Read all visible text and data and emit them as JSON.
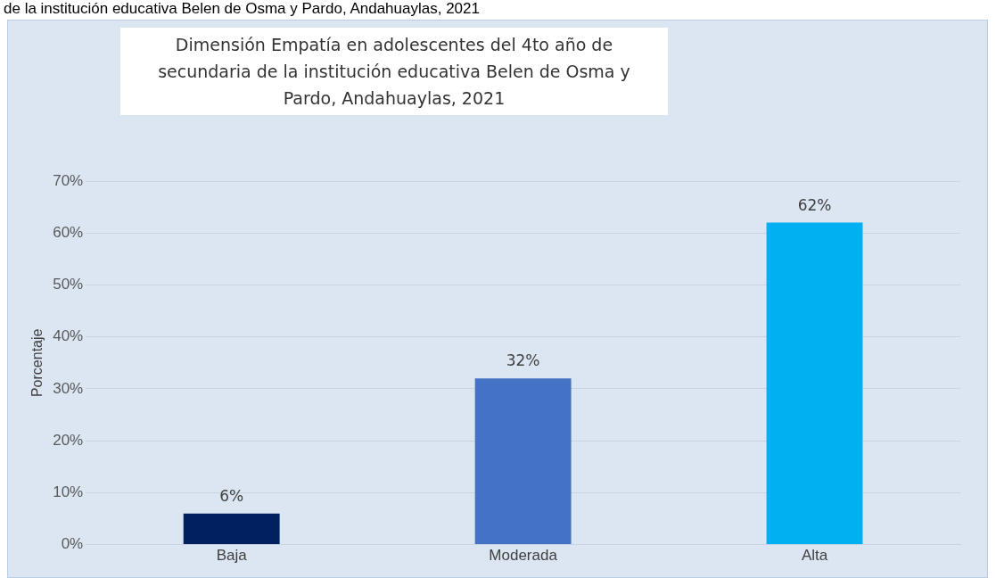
{
  "chart_data": {
    "type": "bar",
    "title": "Dimensión Empatía en adolescentes del 4to año de secundaria de la institución educativa Belen de Osma y Pardo, Andahuaylas, 2021",
    "annotations": [
      "de la institución educativa Belen de Osma y Pardo, Andahuaylas, 2021"
    ],
    "ylabel": "Porcentaje",
    "categories": [
      "Baja",
      "Moderada",
      "Alta"
    ],
    "values": [
      6,
      32,
      62
    ],
    "colors": [
      "#002060",
      "#4472c4",
      "#00b0f0"
    ],
    "value_labels": [
      "6%",
      "32%",
      "62%"
    ],
    "ylim": [
      0,
      70
    ],
    "yticks": [
      {
        "value": 0,
        "label": "0%"
      },
      {
        "value": 10,
        "label": "10%"
      },
      {
        "value": 20,
        "label": "20%"
      },
      {
        "value": 30,
        "label": "30%"
      },
      {
        "value": 40,
        "label": "40%"
      },
      {
        "value": 50,
        "label": "50%"
      },
      {
        "value": 60,
        "label": "60%"
      },
      {
        "value": 70,
        "label": "70%"
      }
    ],
    "grid": "y",
    "legend": false
  }
}
